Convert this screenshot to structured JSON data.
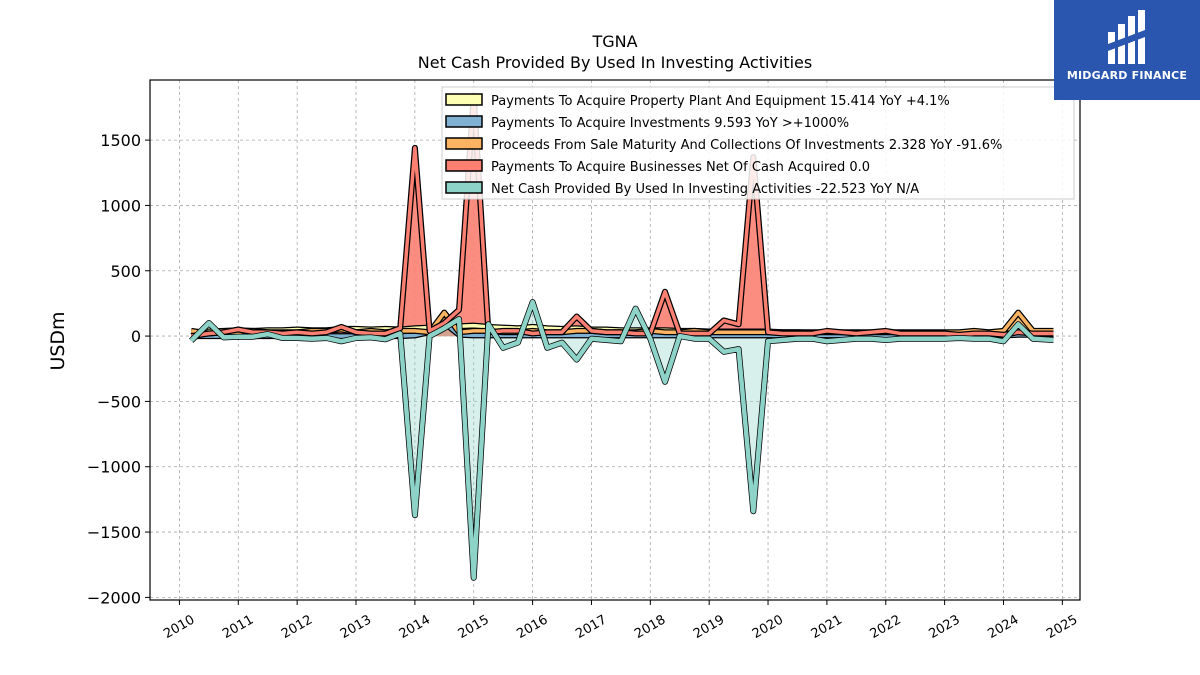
{
  "logo": {
    "text": "MIDGARD FINANCE"
  },
  "chart_data": {
    "type": "area",
    "title": "TGNA",
    "subtitle": "Net Cash Provided By Used In Investing Activities",
    "xlabel": "",
    "ylabel": "USDm",
    "xlim": [
      2009.5,
      2025.3
    ],
    "ylim": [
      -2020,
      1960
    ],
    "y_ticks": [
      -2000,
      -1500,
      -1000,
      -500,
      0,
      500,
      1000,
      1500
    ],
    "y_tick_labels": [
      "−2000",
      "−1500",
      "−1000",
      "−500",
      "0",
      "500",
      "1000",
      "1500"
    ],
    "x_ticks": [
      2010,
      2011,
      2012,
      2013,
      2014,
      2015,
      2016,
      2017,
      2018,
      2019,
      2020,
      2021,
      2022,
      2023,
      2024,
      2025
    ],
    "x_tick_labels": [
      "2010",
      "2011",
      "2012",
      "2013",
      "2014",
      "2015",
      "2016",
      "2017",
      "2018",
      "2019",
      "2020",
      "2021",
      "2022",
      "2023",
      "2024",
      "2025"
    ],
    "grid": true,
    "legend_position": "top-right",
    "x": [
      2010.2,
      2010.5,
      2010.75,
      2011.0,
      2011.25,
      2011.5,
      2011.75,
      2012.0,
      2012.25,
      2012.5,
      2012.75,
      2013.0,
      2013.25,
      2013.5,
      2013.75,
      2014.0,
      2014.25,
      2014.5,
      2014.75,
      2015.0,
      2015.25,
      2015.5,
      2015.75,
      2016.0,
      2016.25,
      2016.5,
      2016.75,
      2017.0,
      2017.25,
      2017.5,
      2017.75,
      2018.0,
      2018.25,
      2018.5,
      2018.75,
      2019.0,
      2019.25,
      2019.5,
      2019.75,
      2020.0,
      2020.25,
      2020.5,
      2020.75,
      2021.0,
      2021.25,
      2021.5,
      2021.75,
      2022.0,
      2022.25,
      2022.5,
      2022.75,
      2023.0,
      2023.25,
      2023.5,
      2023.75,
      2024.0,
      2024.25,
      2024.5,
      2024.85
    ],
    "series": [
      {
        "name": "Payments To Acquire Property Plant And Equipment",
        "legend_label": "Payments To Acquire Property Plant And Equipment  15.414 YoY +4.1%",
        "color": "#ffffb3",
        "values": [
          30,
          35,
          40,
          45,
          40,
          45,
          45,
          50,
          45,
          45,
          55,
          55,
          50,
          55,
          50,
          60,
          65,
          70,
          75,
          80,
          70,
          65,
          60,
          70,
          60,
          55,
          60,
          50,
          50,
          45,
          45,
          45,
          45,
          40,
          40,
          35,
          35,
          35,
          35,
          35,
          30,
          30,
          25,
          20,
          20,
          20,
          20,
          20,
          20,
          20,
          20,
          20,
          20,
          20,
          20,
          20,
          20,
          15,
          15
        ]
      },
      {
        "name": "Payments To Acquire Investments",
        "legend_label": "Payments To Acquire Investments  9.593 YoY >+1000%",
        "color": "#80b1d3",
        "values": [
          0,
          0,
          0,
          0,
          0,
          0,
          0,
          0,
          0,
          0,
          0,
          0,
          0,
          0,
          0,
          5,
          30,
          100,
          10,
          5,
          5,
          5,
          5,
          5,
          5,
          5,
          5,
          5,
          5,
          5,
          5,
          5,
          5,
          5,
          5,
          5,
          5,
          5,
          5,
          5,
          5,
          5,
          5,
          5,
          5,
          5,
          5,
          5,
          5,
          5,
          5,
          5,
          5,
          5,
          5,
          5,
          10,
          10,
          10
        ]
      },
      {
        "name": "Proceeds From Sale Maturity And Collections Of Investments",
        "legend_label": "Proceeds From Sale Maturity And Collections Of Investments  2.328 YoY -91.6%",
        "color": "#fdb462",
        "values": [
          40,
          20,
          30,
          30,
          40,
          30,
          30,
          30,
          40,
          40,
          50,
          30,
          40,
          30,
          40,
          40,
          30,
          180,
          30,
          40,
          40,
          30,
          30,
          40,
          30,
          30,
          40,
          40,
          30,
          30,
          30,
          40,
          30,
          30,
          40,
          30,
          30,
          30,
          30,
          30,
          30,
          30,
          30,
          30,
          30,
          30,
          30,
          30,
          30,
          30,
          30,
          30,
          30,
          40,
          30,
          40,
          180,
          40,
          40
        ]
      },
      {
        "name": "Payments To Acquire Businesses Net Of Cash Acquired",
        "legend_label": "Payments To Acquire Businesses Net Of Cash Acquired  0.0",
        "color": "#fb8072",
        "values": [
          0,
          20,
          30,
          50,
          30,
          30,
          20,
          30,
          20,
          30,
          70,
          30,
          20,
          20,
          60,
          1440,
          40,
          100,
          200,
          1840,
          30,
          40,
          40,
          20,
          30,
          30,
          150,
          40,
          30,
          30,
          20,
          20,
          340,
          20,
          20,
          20,
          120,
          90,
          1370,
          30,
          20,
          20,
          20,
          40,
          30,
          20,
          30,
          40,
          20,
          20,
          20,
          20,
          10,
          20,
          20,
          10,
          30,
          20,
          20
        ]
      },
      {
        "name": "Net Cash Provided By Used In Investing Activities",
        "legend_label": "Net Cash Provided By Used In Investing Activities  -22.523 YoY N/A",
        "color": "#8dd3c7",
        "values": [
          -35,
          100,
          -10,
          -5,
          -5,
          15,
          -15,
          -15,
          -20,
          -15,
          -40,
          -15,
          -10,
          -25,
          20,
          -1370,
          0,
          60,
          130,
          -1850,
          90,
          -90,
          -50,
          260,
          -90,
          -50,
          -180,
          -20,
          -30,
          -40,
          210,
          -20,
          -350,
          0,
          -20,
          -20,
          -120,
          -100,
          -1340,
          -40,
          -30,
          -20,
          -20,
          -40,
          -30,
          -20,
          -20,
          -30,
          -20,
          -20,
          -20,
          -20,
          -15,
          -20,
          -20,
          -40,
          90,
          -20,
          -30
        ]
      }
    ]
  }
}
